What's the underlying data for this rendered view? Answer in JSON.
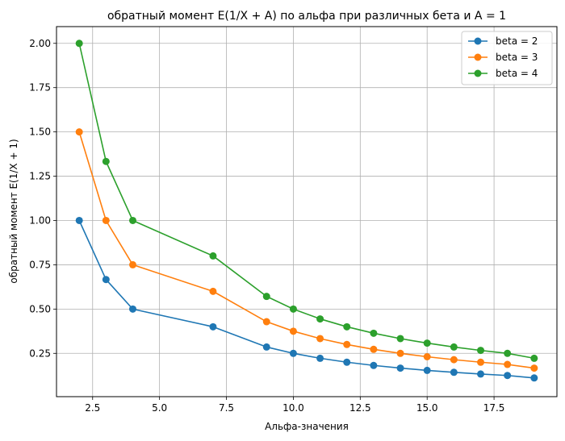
{
  "chart_data": {
    "type": "line",
    "title": "обратный момент E(1/X + A) по альфа при различных бета и A = 1",
    "xlabel": "Альфа-значения",
    "ylabel": "обратный момент E(1/X + 1)",
    "xlim": [
      1.15,
      19.85
    ],
    "ylim": [
      0.0055,
      2.0945
    ],
    "xticks": [
      2.5,
      5.0,
      7.5,
      10.0,
      12.5,
      15.0,
      17.5
    ],
    "xtick_labels": [
      "2.5",
      "5.0",
      "7.5",
      "10.0",
      "12.5",
      "15.0",
      "17.5"
    ],
    "yticks": [
      0.25,
      0.5,
      0.75,
      1.0,
      1.25,
      1.5,
      1.75,
      2.0
    ],
    "ytick_labels": [
      "0.25",
      "0.50",
      "0.75",
      "1.00",
      "1.25",
      "1.50",
      "1.75",
      "2.00"
    ],
    "grid": true,
    "legend_position": "top-right",
    "x": [
      2,
      3,
      4,
      7,
      9,
      10,
      11,
      12,
      13,
      14,
      15,
      16,
      17,
      18,
      19
    ],
    "series": [
      {
        "name": "beta = 2",
        "color": "#1f77b4",
        "values": [
          1.0,
          0.6667,
          0.5,
          0.4,
          0.2857,
          0.25,
          0.2222,
          0.2,
          0.1818,
          0.1667,
          0.1538,
          0.1429,
          0.1333,
          0.125,
          0.1111
        ]
      },
      {
        "name": "beta = 3",
        "color": "#ff7f0e",
        "values": [
          1.5,
          1.0,
          0.75,
          0.6,
          0.4286,
          0.375,
          0.3333,
          0.3,
          0.2727,
          0.25,
          0.2308,
          0.2143,
          0.2,
          0.1875,
          0.1667
        ]
      },
      {
        "name": "beta = 4",
        "color": "#2ca02c",
        "values": [
          2.0,
          1.3333,
          1.0,
          0.8,
          0.5714,
          0.5,
          0.4444,
          0.4,
          0.3636,
          0.3333,
          0.3077,
          0.2857,
          0.2667,
          0.25,
          0.2222
        ]
      }
    ]
  }
}
